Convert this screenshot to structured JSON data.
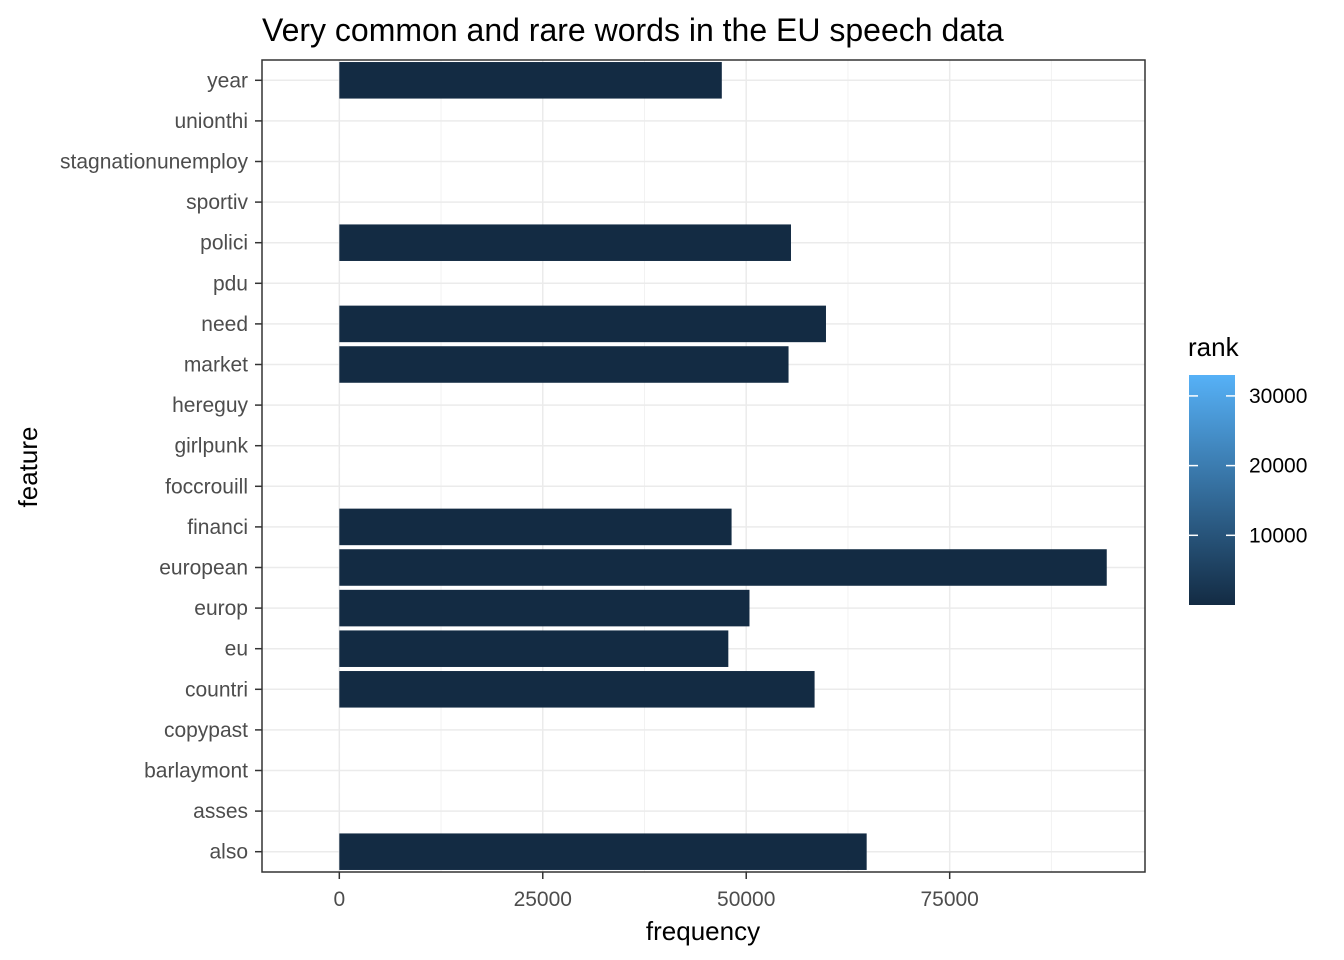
{
  "chart_data": {
    "type": "bar",
    "orientation": "horizontal",
    "title": "Very common and rare words in the EU speech data",
    "xlabel": "frequency",
    "ylabel": "feature",
    "categories": [
      "also",
      "asses",
      "barlaymont",
      "copypast",
      "countri",
      "eu",
      "europ",
      "european",
      "financi",
      "foccrouill",
      "girlpunk",
      "hereguy",
      "market",
      "need",
      "pdu",
      "polici",
      "sportiv",
      "stagnationunemploy",
      "unionthi",
      "year"
    ],
    "values": [
      64800,
      1,
      1,
      1,
      58400,
      47800,
      50400,
      94300,
      48200,
      1,
      1,
      1,
      55200,
      59800,
      1,
      55500,
      1,
      1,
      1,
      47000
    ],
    "xlim": [
      -9500,
      99000
    ],
    "xticks": [
      0,
      25000,
      50000,
      75000
    ],
    "xtick_labels": [
      "0",
      "25000",
      "50000",
      "75000"
    ],
    "grid": true,
    "bar_color": "#132b43",
    "legend": {
      "title": "rank",
      "position": "right",
      "scale_min": 1,
      "scale_max": 33000,
      "ticks": [
        10000,
        20000,
        30000
      ],
      "tick_labels": [
        "10000",
        "20000",
        "30000"
      ],
      "low_color": "#132b43",
      "high_color": "#56b1f7"
    }
  }
}
